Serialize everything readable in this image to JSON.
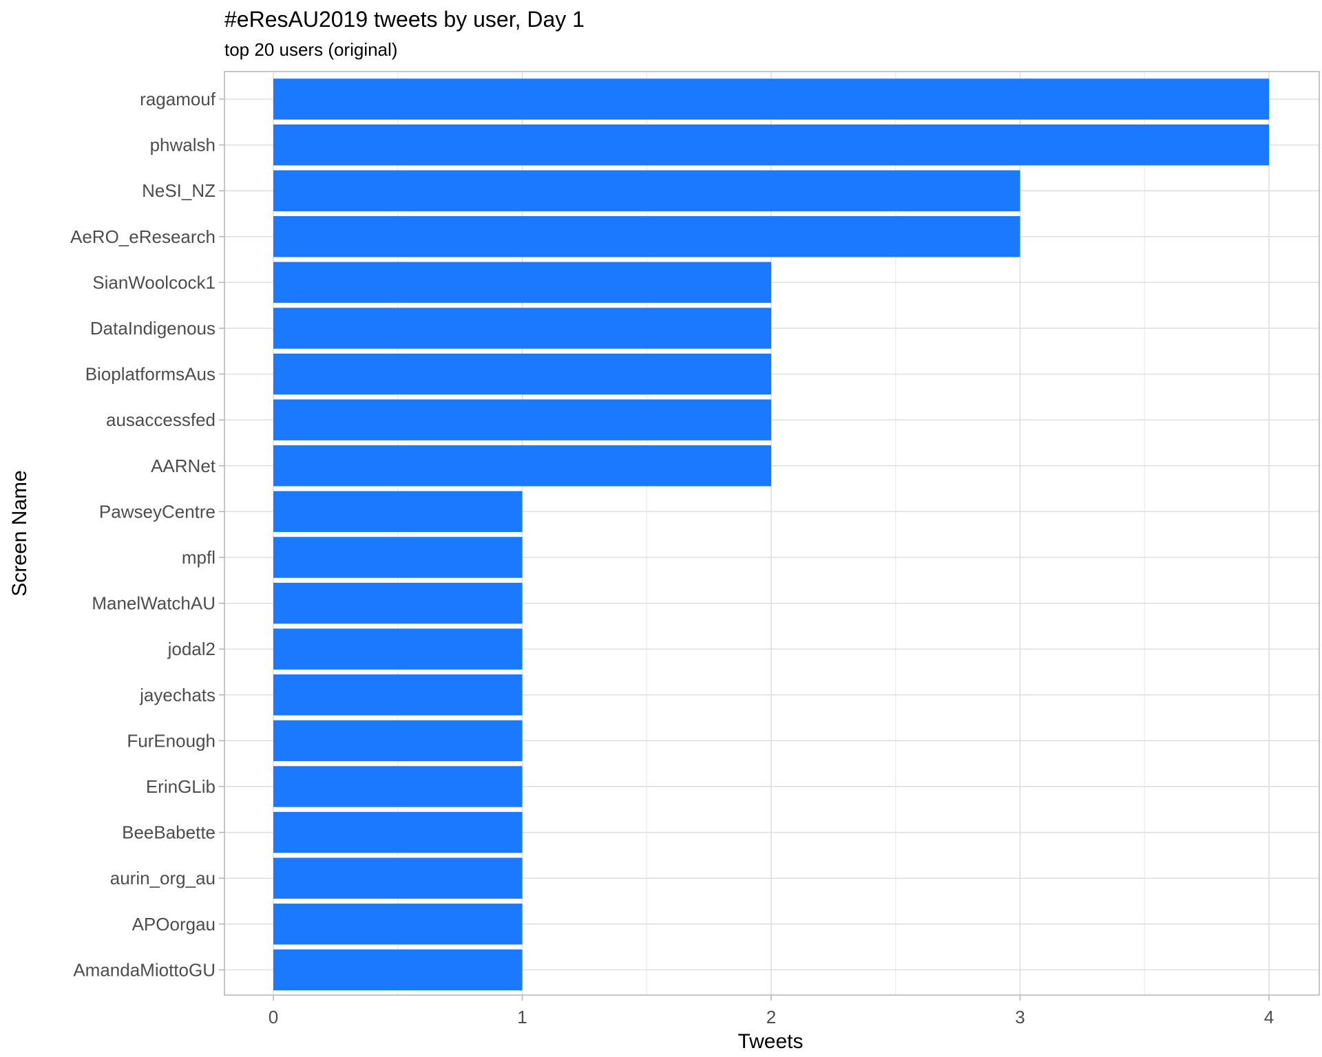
{
  "chart_data": {
    "type": "bar",
    "orientation": "horizontal",
    "title": "#eResAU2019 tweets by user, Day 1",
    "subtitle": "top 20 users (original)",
    "xlabel": "Tweets",
    "ylabel": "Screen Name",
    "xlim": [
      0,
      4
    ],
    "xticks": [
      "0",
      "1",
      "2",
      "3",
      "4"
    ],
    "grid": true,
    "bar_color": "#1b79ff",
    "categories": [
      "ragamouf",
      "phwalsh",
      "NeSI_NZ",
      "AeRO_eResearch",
      "SianWoolcock1",
      "DataIndigenous",
      "BioplatformsAus",
      "ausaccessfed",
      "AARNet",
      "PawseyCentre",
      "mpfl",
      "ManelWatchAU",
      "jodal2",
      "jayechats",
      "FurEnough",
      "ErinGLib",
      "BeeBabette",
      "aurin_org_au",
      "APOorgau",
      "AmandaMiottoGU"
    ],
    "values": [
      4,
      4,
      3,
      3,
      2,
      2,
      2,
      2,
      2,
      1,
      1,
      1,
      1,
      1,
      1,
      1,
      1,
      1,
      1,
      1
    ]
  }
}
